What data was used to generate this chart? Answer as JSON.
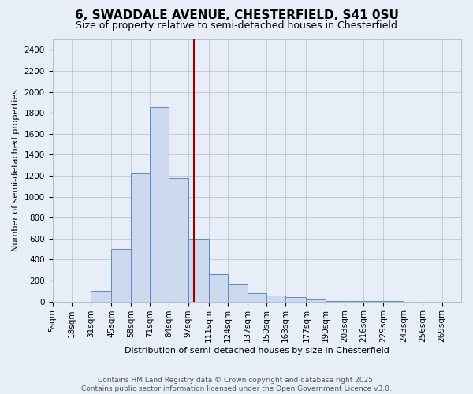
{
  "title": "6, SWADDALE AVENUE, CHESTERFIELD, S41 0SU",
  "subtitle": "Size of property relative to semi-detached houses in Chesterfield",
  "xlabel": "Distribution of semi-detached houses by size in Chesterfield",
  "ylabel": "Number of semi-detached properties",
  "property_size": 101,
  "bin_edges": [
    5,
    18,
    31,
    45,
    58,
    71,
    84,
    97,
    111,
    124,
    137,
    150,
    163,
    177,
    190,
    203,
    216,
    229,
    243,
    256,
    269,
    282
  ],
  "bin_labels": [
    "5sqm",
    "18sqm",
    "31sqm",
    "45sqm",
    "58sqm",
    "71sqm",
    "84sqm",
    "97sqm",
    "111sqm",
    "124sqm",
    "137sqm",
    "150sqm",
    "163sqm",
    "177sqm",
    "190sqm",
    "203sqm",
    "216sqm",
    "229sqm",
    "243sqm",
    "256sqm",
    "269sqm"
  ],
  "counts": [
    0,
    0,
    100,
    500,
    1220,
    1850,
    1180,
    600,
    260,
    160,
    80,
    60,
    40,
    20,
    5,
    3,
    2,
    1,
    0,
    0,
    0
  ],
  "bar_facecolor": "#ccd9ee",
  "bar_edgecolor": "#5b8cc8",
  "vline_color": "#990000",
  "vline_x": 101,
  "annotation_box_color": "#ffffff",
  "annotation_border_color": "#cc0000",
  "ylim": [
    0,
    2500
  ],
  "yticks": [
    0,
    200,
    400,
    600,
    800,
    1000,
    1200,
    1400,
    1600,
    1800,
    2000,
    2200,
    2400
  ],
  "grid_color": "#bbbbcc",
  "bg_color": "#e8eef8",
  "footer_text": "Contains HM Land Registry data © Crown copyright and database right 2025.\nContains public sector information licensed under the Open Government Licence v3.0.",
  "title_fontsize": 11,
  "subtitle_fontsize": 9,
  "annotation_fontsize": 8,
  "footer_fontsize": 6.5,
  "ylabel_fontsize": 8,
  "xlabel_fontsize": 8
}
